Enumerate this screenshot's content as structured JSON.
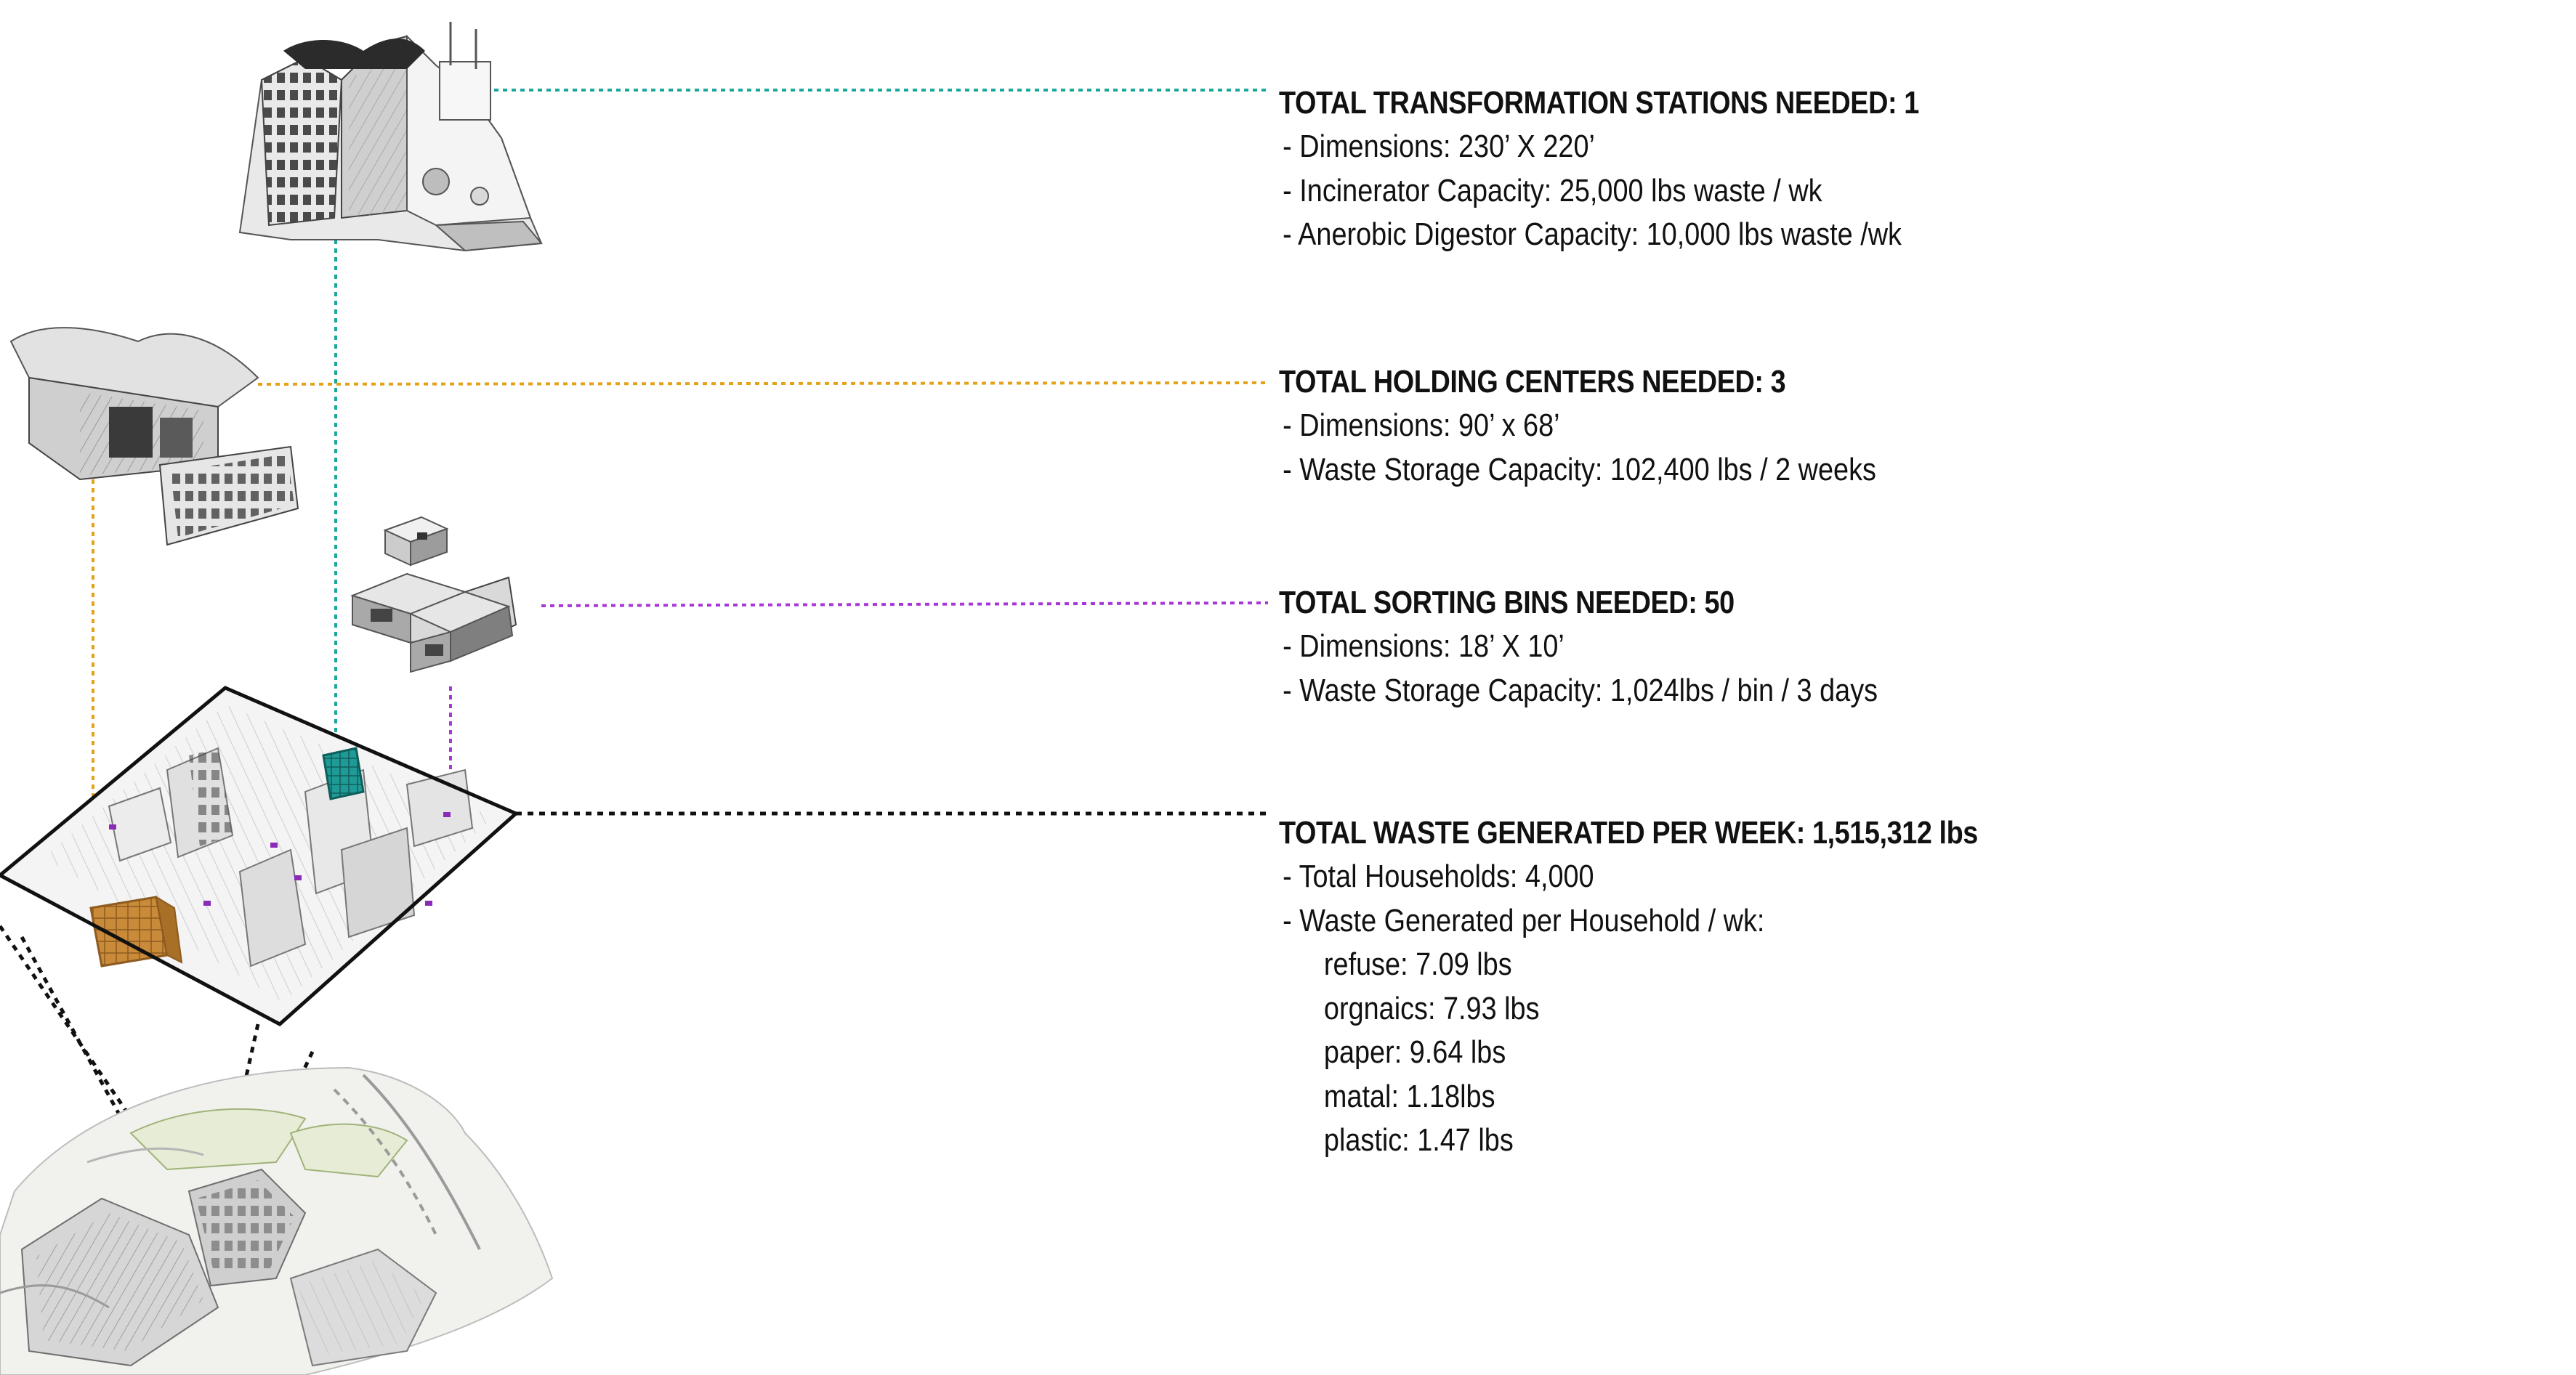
{
  "colors": {
    "transformation_leader": "#1aa89b",
    "holding_leader": "#e3a21a",
    "sorting_leader": "#a838d6",
    "waste_leader": "#111111",
    "holding_highlight": "#c98a3a",
    "transformation_highlight": "#1f9a96",
    "text": "#111111"
  },
  "transformation": {
    "title": "TOTAL TRANSFORMATION STATIONS NEEDED: 1",
    "lines": [
      "- Dimensions: 230’ X 220’",
      "- Incinerator Capacity: 25,000 lbs waste / wk",
      "- Anerobic Digestor Capacity: 10,000 lbs waste /wk"
    ]
  },
  "holding": {
    "title": "TOTAL HOLDING CENTERS NEEDED: 3",
    "lines": [
      "- Dimensions: 90’ x 68’",
      "- Waste Storage Capacity: 102,400 lbs / 2 weeks"
    ]
  },
  "sorting": {
    "title": "TOTAL SORTING BINS NEEDED: 50",
    "lines": [
      "- Dimensions: 18’ X 10’",
      "- Waste Storage Capacity: 1,024lbs / bin / 3 days"
    ]
  },
  "waste": {
    "title": "TOTAL WASTE GENERATED PER WEEK: 1,515,312 lbs",
    "lines": [
      "- Total Households: 4,000",
      "- Waste Generated per Household / wk:"
    ],
    "breakdown": [
      "refuse: 7.09 lbs",
      "orgnaics: 7.93 lbs",
      "paper: 9.64 lbs",
      "matal: 1.18lbs",
      "plastic: 1.47 lbs"
    ]
  }
}
